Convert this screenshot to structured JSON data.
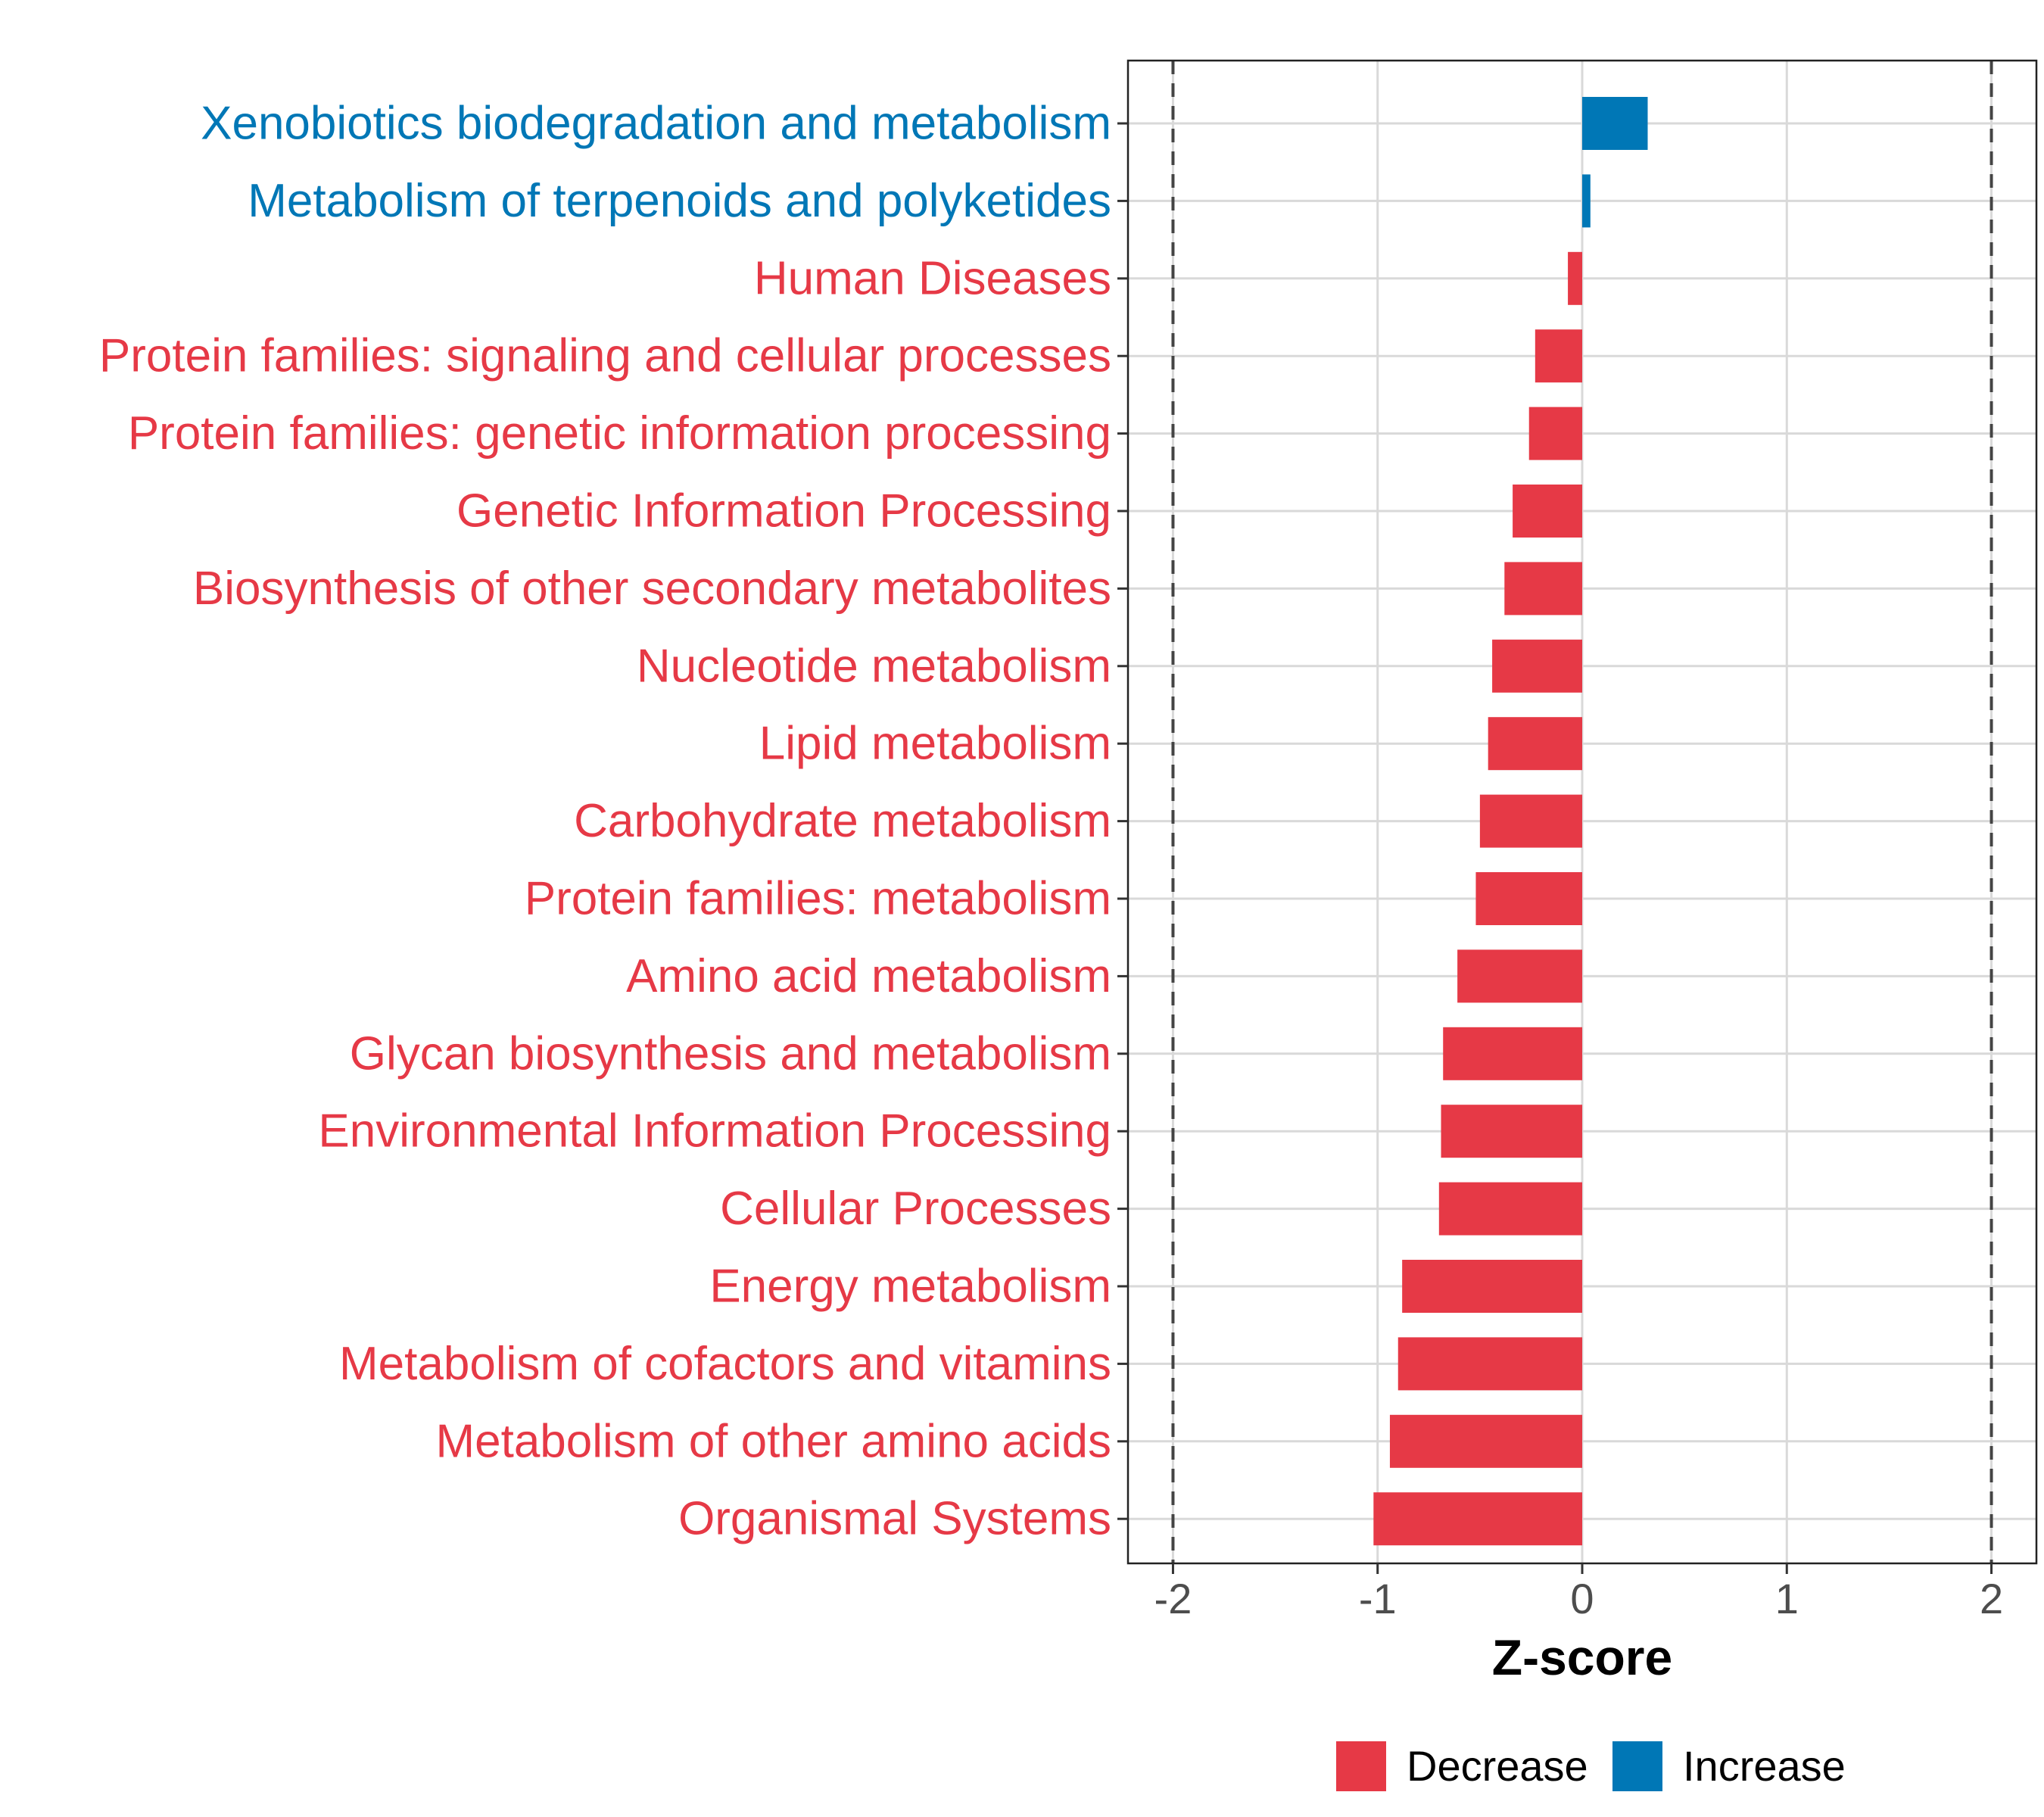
{
  "chart_data": {
    "type": "bar",
    "orientation": "horizontal",
    "categories": [
      "Xenobiotics biodegradation and metabolism",
      "Metabolism of terpenoids and polyketides",
      "Human Diseases",
      "Protein families: signaling and cellular processes",
      "Protein families: genetic information processing",
      "Genetic Information Processing",
      "Biosynthesis of other secondary metabolites",
      "Nucleotide metabolism",
      "Lipid metabolism",
      "Carbohydrate metabolism",
      "Protein families: metabolism",
      "Amino acid metabolism",
      "Glycan biosynthesis and metabolism",
      "Environmental Information Processing",
      "Cellular Processes",
      "Energy metabolism",
      "Metabolism of cofactors and vitamins",
      "Metabolism of other amino acids",
      "Organismal Systems"
    ],
    "values": [
      0.32,
      0.04,
      -0.07,
      -0.23,
      -0.26,
      -0.34,
      -0.38,
      -0.44,
      -0.46,
      -0.5,
      -0.52,
      -0.61,
      -0.68,
      -0.69,
      -0.7,
      -0.88,
      -0.9,
      -0.94,
      -1.02
    ],
    "groups": [
      "Increase",
      "Increase",
      "Decrease",
      "Decrease",
      "Decrease",
      "Decrease",
      "Decrease",
      "Decrease",
      "Decrease",
      "Decrease",
      "Decrease",
      "Decrease",
      "Decrease",
      "Decrease",
      "Decrease",
      "Decrease",
      "Decrease",
      "Decrease",
      "Decrease"
    ],
    "xlabel": "Z-score",
    "ylabel": "",
    "xlim": [
      -2.22,
      2.22
    ],
    "xticks": [
      -2,
      -1,
      0,
      1,
      2
    ],
    "xtick_labels": [
      "-2",
      "-1",
      "0",
      "1",
      "2"
    ],
    "reference_lines": [
      -2,
      2
    ],
    "grid": true,
    "legend": {
      "position": "bottom",
      "entries": [
        {
          "label": "Decrease",
          "color": "#e63946"
        },
        {
          "label": "Increase",
          "color": "#0077b6"
        }
      ]
    },
    "colors": {
      "Decrease": "#e63946",
      "Increase": "#0077b6"
    }
  }
}
